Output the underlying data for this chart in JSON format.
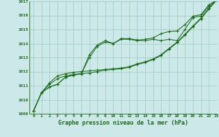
{
  "x": [
    0,
    1,
    2,
    3,
    4,
    5,
    6,
    7,
    8,
    9,
    10,
    11,
    12,
    13,
    14,
    15,
    16,
    17,
    18,
    19,
    20,
    21,
    22,
    23
  ],
  "line1": [
    1009.2,
    1010.5,
    1010.9,
    1011.1,
    1011.6,
    1011.75,
    1011.85,
    1013.2,
    1013.9,
    1014.2,
    1014.0,
    1014.35,
    1014.35,
    1014.25,
    1014.3,
    1014.4,
    1014.7,
    1014.85,
    1014.9,
    1015.35,
    1015.95,
    1016.05,
    1016.75,
    1017.1
  ],
  "line2": [
    1009.2,
    1010.5,
    1010.9,
    1011.1,
    1011.6,
    1011.75,
    1011.85,
    1013.0,
    1013.8,
    1014.1,
    1014.0,
    1014.3,
    1014.3,
    1014.2,
    1014.2,
    1014.3,
    1014.2,
    1014.3,
    1014.2,
    1015.0,
    1015.85,
    1015.95,
    1016.65,
    1017.1
  ],
  "line3": [
    1009.2,
    1010.5,
    1011.1,
    1011.5,
    1011.7,
    1011.8,
    1011.85,
    1011.9,
    1012.0,
    1012.1,
    1012.15,
    1012.2,
    1012.3,
    1012.5,
    1012.65,
    1012.85,
    1013.15,
    1013.6,
    1014.05,
    1014.6,
    1015.2,
    1015.75,
    1016.45,
    1017.1
  ],
  "line4": [
    1009.2,
    1010.5,
    1011.2,
    1011.7,
    1011.85,
    1011.95,
    1012.0,
    1012.05,
    1012.1,
    1012.15,
    1012.2,
    1012.25,
    1012.35,
    1012.55,
    1012.7,
    1012.9,
    1013.2,
    1013.65,
    1014.1,
    1014.65,
    1015.25,
    1015.8,
    1016.5,
    1017.1
  ],
  "line_color": "#1a6b1a",
  "bg_color": "#cce8e8",
  "grid_color": "#99ccbb",
  "title": "Graphe pression niveau de la mer (hPa)",
  "ylim": [
    1009,
    1017
  ],
  "yticks": [
    1009,
    1010,
    1011,
    1012,
    1013,
    1014,
    1015,
    1016,
    1017
  ],
  "xlim": [
    -0.5,
    23
  ],
  "xticks": [
    0,
    1,
    2,
    3,
    4,
    5,
    6,
    7,
    8,
    9,
    10,
    11,
    12,
    13,
    14,
    15,
    16,
    17,
    18,
    19,
    20,
    21,
    22,
    23
  ]
}
